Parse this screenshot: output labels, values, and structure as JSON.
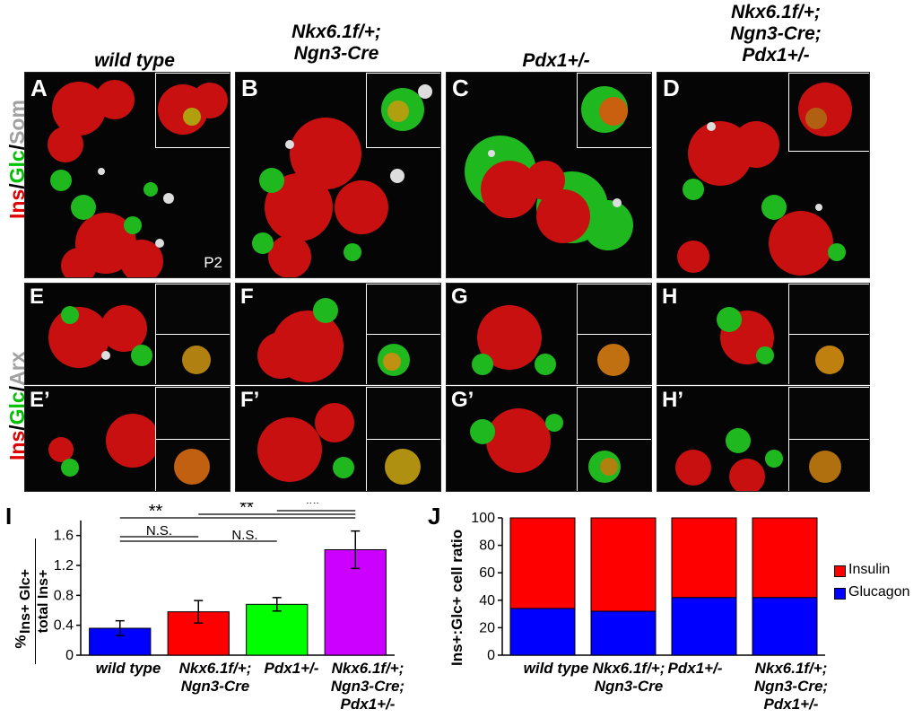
{
  "columns": [
    {
      "lines": [
        "wild type"
      ]
    },
    {
      "lines": [
        "Nkx6.1f/+;",
        "Ngn3-Cre"
      ]
    },
    {
      "lines": [
        "Pdx1+/-"
      ]
    },
    {
      "lines": [
        "Nkx6.1f/+;",
        "Ngn3-Cre;",
        "Pdx1+/-"
      ]
    }
  ],
  "row_labels": {
    "top": {
      "ins": "Ins",
      "sep1": "/",
      "glc": "Glc",
      "sep2": "/",
      "other": "Som"
    },
    "bottom": {
      "ins": "Ins",
      "sep1": "/",
      "glc": "Glc",
      "sep2": "/",
      "other": "Arx"
    }
  },
  "panels_top": [
    "A",
    "B",
    "C",
    "D"
  ],
  "panels_mid": [
    "E",
    "F",
    "G",
    "H"
  ],
  "panels_bot": [
    "E’",
    "F’",
    "G’",
    "H’"
  ],
  "age_label": "P2",
  "chart_I": {
    "label": "I",
    "ylabel_top": "Ins+ Glc+",
    "ylabel_bottom": "total Ins+",
    "ylabel_unit": "%",
    "significance": [
      "**",
      "**",
      "**",
      "N.S.",
      "N.S."
    ],
    "colors": [
      "#0000ff",
      "#ff0000",
      "#00ff00",
      "#cc00ff"
    ]
  },
  "chart_J": {
    "label": "J",
    "ylabel": "Ins+:Glc+ cell ratio",
    "legend": [
      "Insulin",
      "Glucagon"
    ],
    "colors": {
      "insulin": "#ff0000",
      "glucagon": "#0000ff"
    }
  },
  "chart_data": [
    {
      "type": "bar",
      "categories": [
        "wild type",
        "Nkx6.1f/+; Ngn3-Cre",
        "Pdx1+/-",
        "Nkx6.1f/+; Ngn3-Cre; Pdx1+/-"
      ],
      "values": [
        0.36,
        0.58,
        0.68,
        1.41
      ],
      "errors": [
        0.1,
        0.15,
        0.09,
        0.25
      ],
      "ylabel": "% Ins+ Glc+ / total Ins+",
      "ylim": [
        0,
        1.8
      ],
      "yticks": [
        0,
        0.4,
        0.8,
        1.2,
        1.6
      ]
    },
    {
      "type": "bar",
      "stacked": true,
      "categories": [
        "wild type",
        "Nkx6.1f/+; Ngn3-Cre",
        "Pdx1+/-",
        "Nkx6.1f/+; Ngn3-Cre; Pdx1+/-"
      ],
      "series": [
        {
          "name": "Glucagon",
          "values": [
            34,
            32,
            42,
            42
          ]
        },
        {
          "name": "Insulin",
          "values": [
            66,
            68,
            58,
            58
          ]
        }
      ],
      "ylabel": "Ins+:Glc+ cell ratio",
      "ylim": [
        0,
        100
      ],
      "yticks": [
        0,
        20,
        40,
        60,
        80,
        100
      ]
    }
  ]
}
